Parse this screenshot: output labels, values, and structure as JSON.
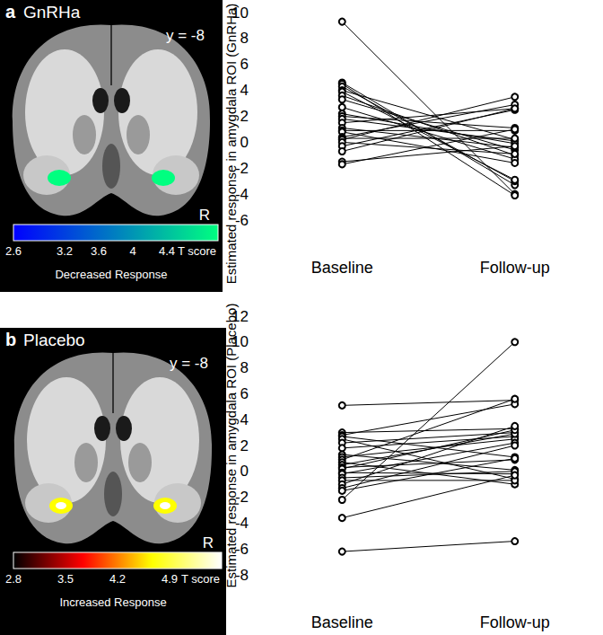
{
  "brain_images": [
    {
      "label": "a",
      "title": "GnRHa",
      "slice": "y = -8",
      "side": "R",
      "colorbar": {
        "range": [
          2.6,
          5.0
        ],
        "ticks": [
          2.6,
          3.2,
          3.6,
          4.0,
          4.4
        ],
        "label": "T score",
        "caption": "Decreased Response",
        "colors": [
          "#0000ff",
          "#00ff80"
        ]
      }
    },
    {
      "label": "b",
      "title": "Placebo",
      "slice": "y = -8",
      "side": "R",
      "colorbar": {
        "range": [
          2.8,
          5.6
        ],
        "ticks": [
          2.8,
          3.5,
          4.2,
          4.9
        ],
        "label": "T score",
        "caption": "Increased Response",
        "colors": [
          "#000000",
          "#ff0000",
          "#ffff00",
          "#ffffff"
        ]
      }
    }
  ],
  "chart_data": [
    {
      "type": "line",
      "y_label": "Estimated response in amygdala ROI (GnRHa)",
      "categories": [
        "Baseline",
        "Follow-up"
      ],
      "ylim": [
        -6,
        10
      ],
      "yticks": [
        -6,
        -4,
        -2,
        0,
        2,
        4,
        6,
        8,
        10
      ],
      "grid": false,
      "color": "#000000",
      "marker": "open_circle",
      "line_style": "solid",
      "series": [
        {
          "values": [
            9.3,
            -4.0
          ]
        },
        {
          "values": [
            4.6,
            -3.3
          ]
        },
        {
          "values": [
            4.5,
            -4.1
          ]
        },
        {
          "values": [
            4.3,
            -3.0
          ]
        },
        {
          "values": [
            4.0,
            0.2
          ]
        },
        {
          "values": [
            3.9,
            -2.9
          ]
        },
        {
          "values": [
            3.6,
            -1.0
          ]
        },
        {
          "values": [
            3.3,
            -0.6
          ]
        },
        {
          "values": [
            2.7,
            -1.3
          ]
        },
        {
          "values": [
            2.2,
            -0.1
          ]
        },
        {
          "values": [
            2.0,
            1.1
          ]
        },
        {
          "values": [
            1.8,
            0.1
          ]
        },
        {
          "values": [
            1.5,
            2.6
          ]
        },
        {
          "values": [
            1.1,
            -0.4
          ]
        },
        {
          "values": [
            0.9,
            0.9
          ]
        },
        {
          "values": [
            0.8,
            -1.6
          ]
        },
        {
          "values": [
            0.4,
            2.9
          ]
        },
        {
          "values": [
            0.3,
            0.3
          ]
        },
        {
          "values": [
            0.2,
            3.5
          ]
        },
        {
          "values": [
            0.0,
            -0.9
          ]
        },
        {
          "values": [
            -0.3,
            2.5
          ]
        },
        {
          "values": [
            -0.7,
            2.6
          ]
        },
        {
          "values": [
            -1.5,
            -0.3
          ]
        },
        {
          "values": [
            -1.7,
            1.0
          ]
        }
      ]
    },
    {
      "type": "line",
      "y_label": "Estimated response in amygdala ROI (Placebo)",
      "categories": [
        "Baseline",
        "Follow-up"
      ],
      "ylim": [
        -8,
        12
      ],
      "yticks": [
        -8,
        -6,
        -4,
        -2,
        0,
        2,
        4,
        6,
        8,
        10,
        12
      ],
      "grid": false,
      "color": "#000000",
      "marker": "open_circle",
      "line_style": "solid",
      "series": [
        {
          "values": [
            5.1,
            5.5
          ]
        },
        {
          "values": [
            3.0,
            3.3
          ]
        },
        {
          "values": [
            2.8,
            5.2
          ]
        },
        {
          "values": [
            2.7,
            1.1
          ]
        },
        {
          "values": [
            2.5,
            -0.6
          ]
        },
        {
          "values": [
            2.2,
            3.0
          ]
        },
        {
          "values": [
            1.8,
            2.7
          ]
        },
        {
          "values": [
            1.3,
            0.1
          ]
        },
        {
          "values": [
            1.1,
            2.5
          ]
        },
        {
          "values": [
            0.9,
            5.6
          ]
        },
        {
          "values": [
            0.7,
            -1.0
          ]
        },
        {
          "values": [
            0.5,
            2.9
          ]
        },
        {
          "values": [
            0.3,
            0.9
          ]
        },
        {
          "values": [
            0.2,
            3.2
          ]
        },
        {
          "values": [
            -0.1,
            -0.2
          ]
        },
        {
          "values": [
            -0.2,
            2.2
          ]
        },
        {
          "values": [
            -0.5,
            0.0
          ]
        },
        {
          "values": [
            -0.7,
            -0.7
          ]
        },
        {
          "values": [
            -1.0,
            3.5
          ]
        },
        {
          "values": [
            -1.3,
            2.0
          ]
        },
        {
          "values": [
            -1.5,
            1.0
          ]
        },
        {
          "values": [
            -2.2,
            10.0
          ]
        },
        {
          "values": [
            -3.6,
            -0.3
          ]
        },
        {
          "values": [
            -6.2,
            -5.4
          ]
        }
      ]
    }
  ]
}
